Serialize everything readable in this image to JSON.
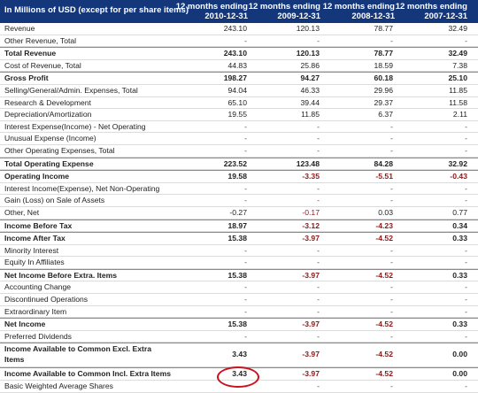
{
  "header": {
    "label": "In Millions of USD (except for per share items)",
    "columns": [
      {
        "line1": "12 months ending",
        "line2": "2010-12-31"
      },
      {
        "line1": "12 months ending",
        "line2": "2009-12-31"
      },
      {
        "line1": "12 months ending",
        "line2": "2008-12-31"
      },
      {
        "line1": "12 months ending",
        "line2": "2007-12-31"
      }
    ]
  },
  "rows": [
    {
      "label": "Revenue",
      "bold": false,
      "values": [
        "243.10",
        "120.13",
        "78.77",
        "32.49"
      ]
    },
    {
      "label": "Other Revenue, Total",
      "bold": false,
      "values": [
        "-",
        "-",
        "-",
        "-"
      ]
    },
    {
      "label": "Total Revenue",
      "bold": true,
      "values": [
        "243.10",
        "120.13",
        "78.77",
        "32.49"
      ]
    },
    {
      "label": "Cost of Revenue, Total",
      "bold": false,
      "values": [
        "44.83",
        "25.86",
        "18.59",
        "7.38"
      ]
    },
    {
      "label": "Gross Profit",
      "bold": true,
      "values": [
        "198.27",
        "94.27",
        "60.18",
        "25.10"
      ]
    },
    {
      "label": "Selling/General/Admin. Expenses, Total",
      "bold": false,
      "values": [
        "94.04",
        "46.33",
        "29.96",
        "11.85"
      ]
    },
    {
      "label": "Research & Development",
      "bold": false,
      "values": [
        "65.10",
        "39.44",
        "29.37",
        "11.58"
      ]
    },
    {
      "label": "Depreciation/Amortization",
      "bold": false,
      "values": [
        "19.55",
        "11.85",
        "6.37",
        "2.11"
      ]
    },
    {
      "label": "Interest Expense(Income) - Net Operating",
      "bold": false,
      "values": [
        "-",
        "-",
        "-",
        "-"
      ]
    },
    {
      "label": "Unusual Expense (Income)",
      "bold": false,
      "values": [
        "-",
        "-",
        "-",
        "-"
      ]
    },
    {
      "label": "Other Operating Expenses, Total",
      "bold": false,
      "values": [
        "-",
        "-",
        "-",
        "-"
      ]
    },
    {
      "label": "Total Operating Expense",
      "bold": true,
      "values": [
        "223.52",
        "123.48",
        "84.28",
        "32.92"
      ]
    },
    {
      "label": "Operating Income",
      "bold": true,
      "values": [
        "19.58",
        "-3.35",
        "-5.51",
        "-0.43"
      ]
    },
    {
      "label": "Interest Income(Expense), Net Non-Operating",
      "bold": false,
      "values": [
        "-",
        "-",
        "-",
        "-"
      ]
    },
    {
      "label": "Gain (Loss) on Sale of Assets",
      "bold": false,
      "values": [
        "-",
        "-",
        "-",
        "-"
      ]
    },
    {
      "label": "Other, Net",
      "bold": false,
      "values": [
        "-0.27",
        "-0.17",
        "0.03",
        "0.77"
      ]
    },
    {
      "label": "Income Before Tax",
      "bold": true,
      "values": [
        "18.97",
        "-3.12",
        "-4.23",
        "0.34"
      ]
    },
    {
      "label": "Income After Tax",
      "bold": true,
      "values": [
        "15.38",
        "-3.97",
        "-4.52",
        "0.33"
      ]
    },
    {
      "label": "Minority Interest",
      "bold": false,
      "values": [
        "-",
        "-",
        "-",
        "-"
      ]
    },
    {
      "label": "Equity In Affiliates",
      "bold": false,
      "values": [
        "-",
        "-",
        "-",
        "-"
      ]
    },
    {
      "label": "Net Income Before Extra. Items",
      "bold": true,
      "values": [
        "15.38",
        "-3.97",
        "-4.52",
        "0.33"
      ]
    },
    {
      "label": "Accounting Change",
      "bold": false,
      "values": [
        "-",
        "-",
        "-",
        "-"
      ]
    },
    {
      "label": "Discontinued Operations",
      "bold": false,
      "values": [
        "-",
        "-",
        "-",
        "-"
      ]
    },
    {
      "label": "Extraordinary Item",
      "bold": false,
      "values": [
        "-",
        "-",
        "-",
        "-"
      ]
    },
    {
      "label": "Net Income",
      "bold": true,
      "values": [
        "15.38",
        "-3.97",
        "-4.52",
        "0.33"
      ]
    },
    {
      "label": "Preferred Dividends",
      "bold": false,
      "values": [
        "-",
        "-",
        "-",
        "-"
      ]
    },
    {
      "label": "Income Available to Common Excl. Extra Items",
      "bold": true,
      "tall": true,
      "values": [
        "3.43",
        "-3.97",
        "-4.52",
        "0.00"
      ]
    },
    {
      "label": "Income Available to Common Incl. Extra Items",
      "bold": true,
      "values": [
        "3.43",
        "-3.97",
        "-4.52",
        "0.00"
      ]
    },
    {
      "label": "Basic Weighted Average Shares",
      "bold": false,
      "values": [
        "-",
        "-",
        "-",
        "-"
      ]
    }
  ],
  "highlight": {
    "row": 27,
    "column": 0,
    "color": "#c8141e"
  }
}
